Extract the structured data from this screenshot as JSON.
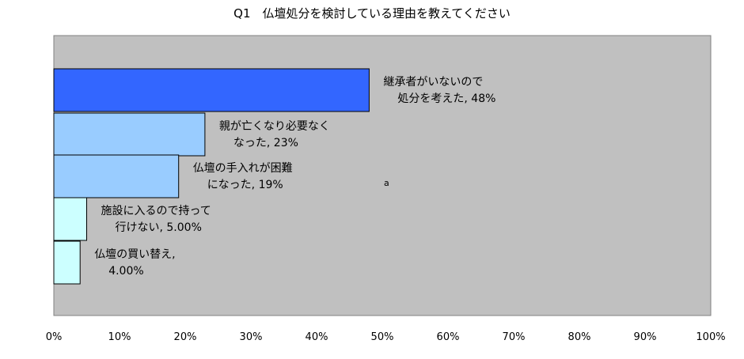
{
  "chart_data": {
    "type": "bar",
    "orientation": "horizontal",
    "title": "Q1　仏壇処分を検討している理由を教えてください",
    "xlim": [
      0,
      100
    ],
    "x_ticks": [
      "0%",
      "10%",
      "20%",
      "30%",
      "40%",
      "50%",
      "60%",
      "70%",
      "80%",
      "90%",
      "100%"
    ],
    "grid": false,
    "plot_background": "#c0c0c0",
    "annotation": "a",
    "bars": [
      {
        "value": 48,
        "label_line1": "継承者がいないので",
        "label_line2": "処分を考えた, 48%",
        "color": "#3366ff"
      },
      {
        "value": 23,
        "label_line1": "親が亡くなり必要なく",
        "label_line2": "なった, 23%",
        "color": "#99ccff"
      },
      {
        "value": 19,
        "label_line1": "仏壇の手入れが困難",
        "label_line2": "になった, 19%",
        "color": "#99ccff"
      },
      {
        "value": 5,
        "label_line1": "施設に入るので持って",
        "label_line2": "行けない, 5.00%",
        "color": "#ccffff"
      },
      {
        "value": 4,
        "label_line1": "仏壇の買い替え,",
        "label_line2": "4.00%",
        "color": "#ccffff"
      }
    ]
  }
}
